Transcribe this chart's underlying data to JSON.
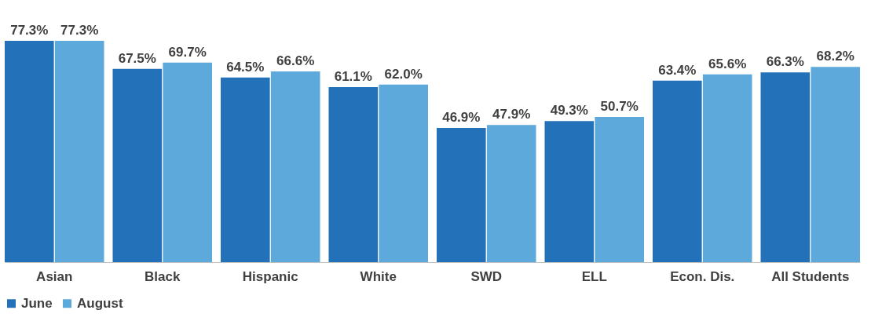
{
  "chart_data": {
    "type": "bar",
    "categories": [
      "Asian",
      "Black",
      "Hispanic",
      "White",
      "SWD",
      "ELL",
      "Econ. Dis.",
      "All Students"
    ],
    "series": [
      {
        "name": "June",
        "color": "#2372b9",
        "values": [
          77.3,
          67.5,
          64.5,
          61.1,
          46.9,
          49.3,
          63.4,
          66.3
        ],
        "value_labels": [
          "77.3%",
          "67.5%",
          "64.5%",
          "61.1%",
          "46.9%",
          "49.3%",
          "63.4%",
          "66.3%"
        ]
      },
      {
        "name": "August",
        "color": "#5ea9dc",
        "values": [
          77.3,
          69.7,
          66.6,
          62.0,
          47.9,
          50.7,
          65.6,
          68.2
        ],
        "value_labels": [
          "77.3%",
          "69.7%",
          "66.6%",
          "62.0%",
          "47.9%",
          "50.7%",
          "65.6%",
          "68.2%"
        ]
      }
    ],
    "legend": "bottom",
    "grid": false
  }
}
